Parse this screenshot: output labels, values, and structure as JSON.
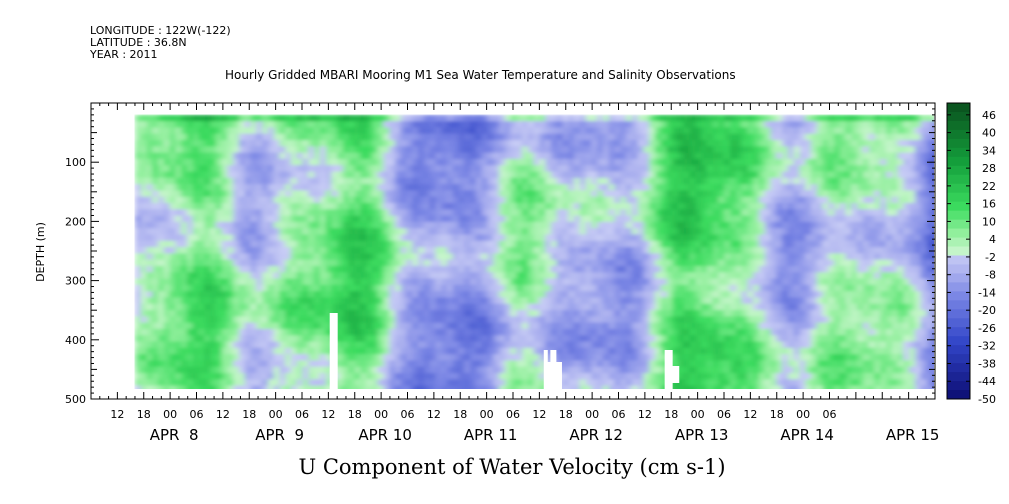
{
  "header": {
    "longitude": "LONGITUDE : 122W(-122)",
    "latitude": "LATITUDE : 36.8N",
    "year": "YEAR : 2011"
  },
  "chart_data": {
    "type": "heatmap",
    "title": "Hourly Gridded MBARI Mooring M1 Sea Water Temperature and Salinity Observations",
    "xlabel": "",
    "ylabel": "DEPTH (m)",
    "bottom_label": "U Component of Water Velocity (cm s-1)",
    "y_axis": {
      "range": [
        0,
        500
      ],
      "reversed": true,
      "ticks": [
        100,
        200,
        300,
        400,
        500
      ]
    },
    "x_axis": {
      "range_hours_from_apr7_00": [
        6,
        198
      ],
      "hour_ticks": [
        "12",
        "18",
        "00",
        "06",
        "12",
        "18",
        "00",
        "06",
        "12",
        "18",
        "00",
        "06",
        "12",
        "18",
        "00",
        "06",
        "12",
        "18",
        "00",
        "06",
        "12",
        "18",
        "00",
        "06",
        "12",
        "18",
        "00",
        "06"
      ],
      "day_labels": [
        "APR  8",
        "APR  9",
        "APR 10",
        "APR 11",
        "APR 12",
        "APR 13",
        "APR 14",
        "APR 15"
      ]
    },
    "data_extent": {
      "depth_min_m": 20,
      "depth_max_m": 488,
      "start": "APR 7 16:00",
      "end": "APR 15 08:00"
    },
    "colorbar": {
      "labels": [
        "46",
        "40",
        "34",
        "28",
        "22",
        "16",
        "10",
        "4",
        "-2",
        "-8",
        "-14",
        "-20",
        "-26",
        "-32",
        "-38",
        "-44",
        "-50"
      ],
      "min": -50,
      "max": 50,
      "step": 3
    },
    "colors": {
      "strong_negative": "#0a0a6e",
      "mid_negative": "#7a86e0",
      "weak_negative": "#b3b8f0",
      "weak_positive": "#a8f0b0",
      "mid_positive": "#2ed85a",
      "strong_positive": "#0a5a1c"
    },
    "grid": false
  }
}
